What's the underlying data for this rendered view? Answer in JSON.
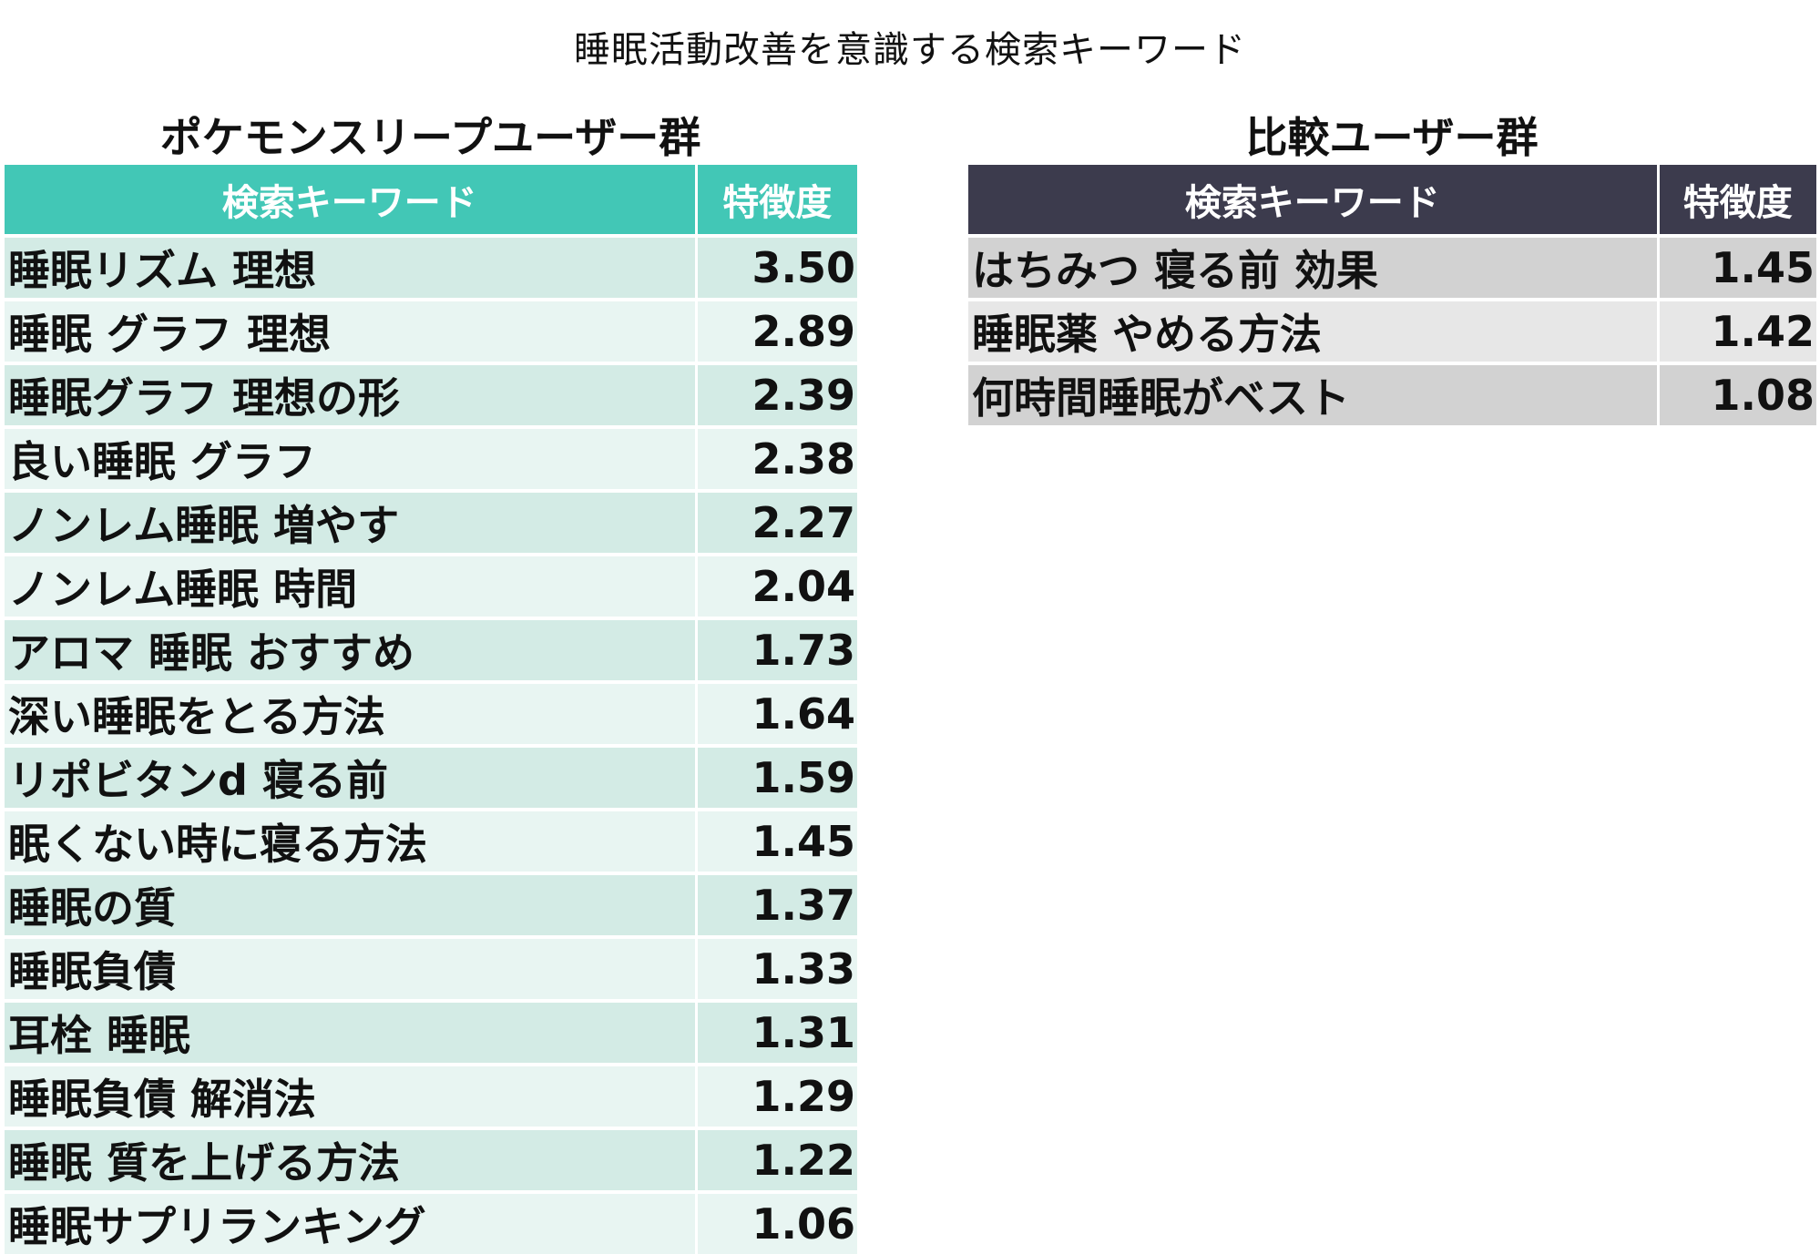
{
  "title": "睡眠活動改善を意識する検索キーワード",
  "pokemon_group": {
    "title": "ポケモンスリープユーザー群",
    "header_keyword": "検索キーワード",
    "header_score": "特徴度",
    "header_color": "#42c7b6",
    "rows": [
      {
        "keyword": "睡眠リズム 理想",
        "score": "3.50"
      },
      {
        "keyword": "睡眠 グラフ 理想",
        "score": "2.89"
      },
      {
        "keyword": "睡眠グラフ 理想の形",
        "score": "2.39"
      },
      {
        "keyword": "良い睡眠 グラフ",
        "score": "2.38"
      },
      {
        "keyword": "ノンレム睡眠 増やす",
        "score": "2.27"
      },
      {
        "keyword": "ノンレム睡眠 時間",
        "score": "2.04"
      },
      {
        "keyword": "アロマ 睡眠 おすすめ",
        "score": "1.73"
      },
      {
        "keyword": "深い睡眠をとる方法",
        "score": "1.64"
      },
      {
        "keyword": "リポビタンd 寝る前",
        "score": "1.59"
      },
      {
        "keyword": "眠くない時に寝る方法",
        "score": "1.45"
      },
      {
        "keyword": "睡眠の質",
        "score": "1.37"
      },
      {
        "keyword": "睡眠負債",
        "score": "1.33"
      },
      {
        "keyword": "耳栓 睡眠",
        "score": "1.31"
      },
      {
        "keyword": "睡眠負債 解消法",
        "score": "1.29"
      },
      {
        "keyword": "睡眠 質を上げる方法",
        "score": "1.22"
      },
      {
        "keyword": "睡眠サプリランキング",
        "score": "1.06"
      }
    ]
  },
  "compare_group": {
    "title": "比較ユーザー群",
    "header_keyword": "検索キーワード",
    "header_score": "特徴度",
    "header_color": "#3c3b4d",
    "rows": [
      {
        "keyword": "はちみつ 寝る前 効果",
        "score": "1.45"
      },
      {
        "keyword": "睡眠薬 やめる方法",
        "score": "1.42"
      },
      {
        "keyword": "何時間睡眠がベスト",
        "score": "1.08"
      }
    ]
  }
}
